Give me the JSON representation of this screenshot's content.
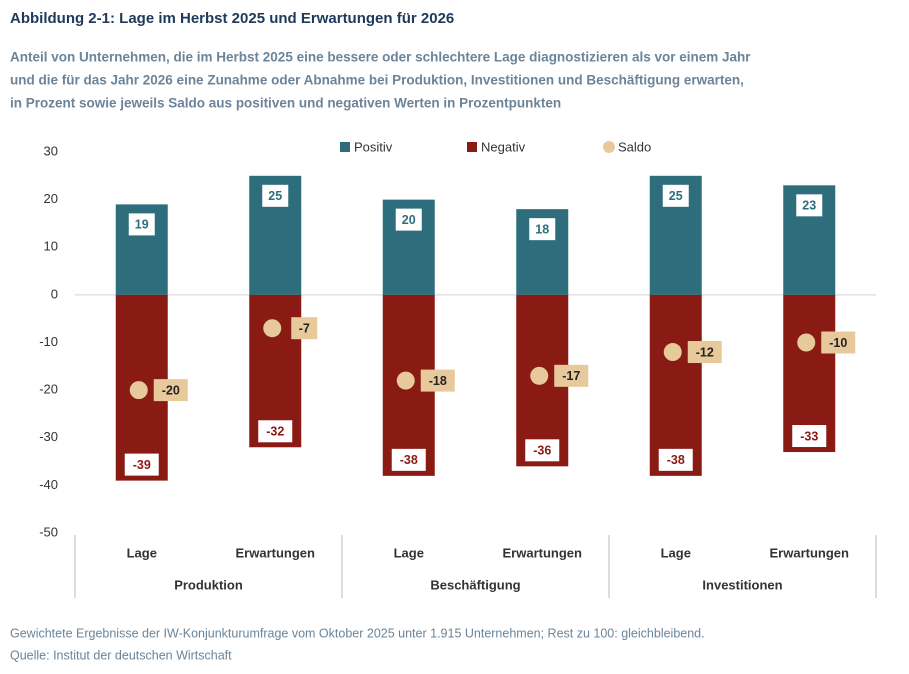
{
  "chart_data": {
    "type": "bar",
    "title": "Abbildung 2-1: Lage im Herbst 2025 und Erwartungen für 2026",
    "subtitle": [
      "Anteil von Unternehmen, die im Herbst 2025 eine bessere oder schlechtere Lage diagnostizieren als vor einem Jahr",
      "und die für das Jahr 2026 eine Zunahme oder Abnahme bei Produktion, Investitionen und Beschäftigung erwarten,",
      "in Prozent sowie jeweils Saldo aus positiven und negativen Werten in Prozentpunkten"
    ],
    "categories": [
      "Lage",
      "Erwartungen",
      "Lage",
      "Erwartungen",
      "Lage",
      "Erwartungen"
    ],
    "groups": [
      "Produktion",
      "Beschäftigung",
      "Investitionen"
    ],
    "series": [
      {
        "name": "Positiv",
        "color": "#2e6e7c",
        "values": [
          19,
          25,
          20,
          18,
          25,
          23
        ]
      },
      {
        "name": "Negativ",
        "color": "#8a1a14",
        "values": [
          -39,
          -32,
          -38,
          -36,
          -38,
          -33
        ]
      },
      {
        "name": "Saldo",
        "color": "#e8c99b",
        "values": [
          -20,
          -7,
          -18,
          -17,
          -12,
          -10
        ]
      }
    ],
    "ylim": [
      -50,
      30
    ],
    "yticks": [
      -50,
      -40,
      -30,
      -20,
      -10,
      0,
      10,
      20,
      30
    ],
    "grid": false,
    "footnote": [
      "Gewichtete Ergebnisse der IW-Konjunkturumfrage vom Oktober 2025 unter 1.915 Unternehmen; Rest zu 100: gleichbleibend.",
      "Quelle: Institut der deutschen Wirtschaft"
    ]
  }
}
